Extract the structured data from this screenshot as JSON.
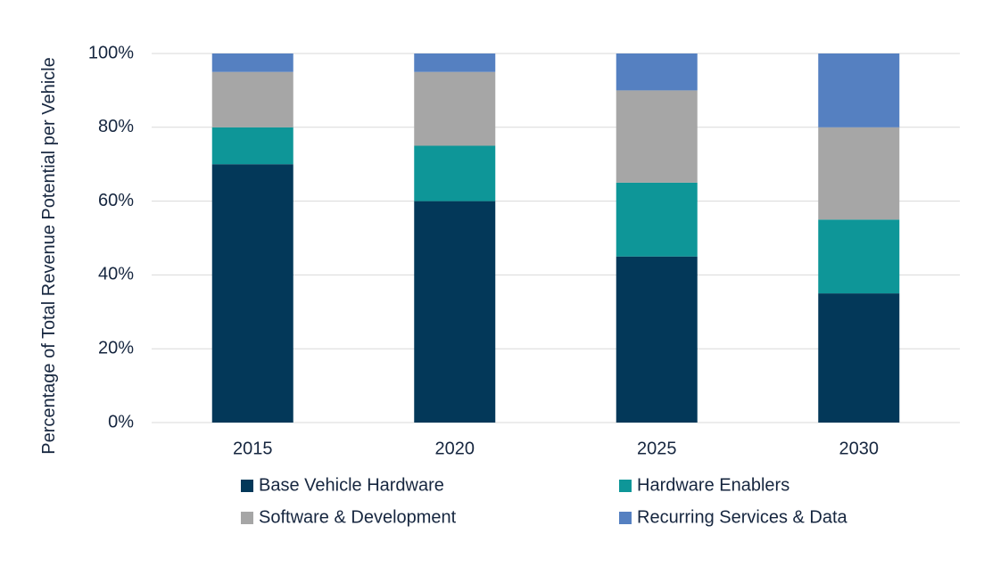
{
  "chart_data": {
    "type": "stacked_bar",
    "y_label": "Percentage of Total Revenue Potential per Vehicle",
    "categories": [
      "2015",
      "2020",
      "2025",
      "2030"
    ],
    "series": [
      {
        "name": "Base Vehicle Hardware",
        "color": "#033859",
        "values": [
          70,
          60,
          45,
          35
        ]
      },
      {
        "name": "Hardware Enablers",
        "color": "#0e9698",
        "values": [
          10,
          15,
          20,
          20
        ]
      },
      {
        "name": "Software & Development",
        "color": "#a6a6a6",
        "values": [
          15,
          20,
          25,
          25
        ]
      },
      {
        "name": "Recurring Services & Data",
        "color": "#5580c1",
        "values": [
          5,
          5,
          10,
          20
        ]
      }
    ],
    "ylim": [
      0,
      100
    ],
    "yticks": [
      {
        "value": 0,
        "label": "0%"
      },
      {
        "value": 20,
        "label": "20%"
      },
      {
        "value": 40,
        "label": "40%"
      },
      {
        "value": 60,
        "label": "60%"
      },
      {
        "value": 80,
        "label": "80%"
      },
      {
        "value": 100,
        "label": "100%"
      }
    ],
    "grid": true
  }
}
